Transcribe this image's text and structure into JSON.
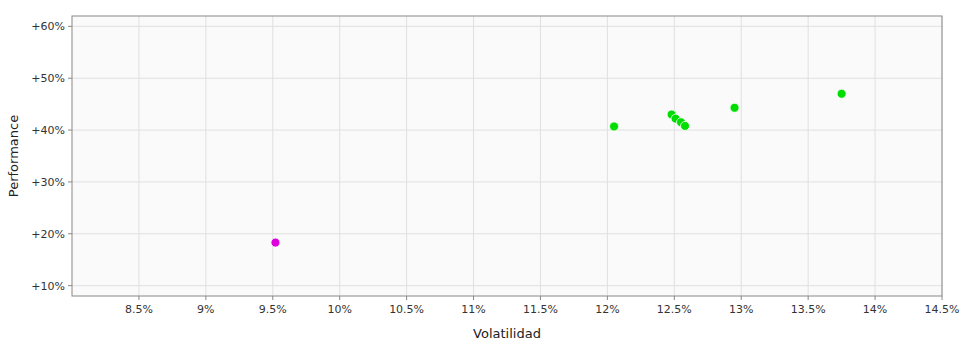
{
  "chart_data": {
    "type": "scatter",
    "x_label": "Volatilidad",
    "y_label": "Performance",
    "xlim": [
      0.08,
      0.145
    ],
    "ylim": [
      0.08,
      0.62
    ],
    "xticks": [
      {
        "value": 0.085,
        "label": "8.5%"
      },
      {
        "value": 0.09,
        "label": "9%"
      },
      {
        "value": 0.095,
        "label": "9.5%"
      },
      {
        "value": 0.1,
        "label": "10%"
      },
      {
        "value": 0.105,
        "label": "10.5%"
      },
      {
        "value": 0.11,
        "label": "11%"
      },
      {
        "value": 0.115,
        "label": "11.5%"
      },
      {
        "value": 0.12,
        "label": "12%"
      },
      {
        "value": 0.125,
        "label": "12.5%"
      },
      {
        "value": 0.13,
        "label": "13%"
      },
      {
        "value": 0.135,
        "label": "13.5%"
      },
      {
        "value": 0.14,
        "label": "14%"
      },
      {
        "value": 0.145,
        "label": "14.5%"
      }
    ],
    "yticks": [
      {
        "value": 0.1,
        "label": "+10%"
      },
      {
        "value": 0.2,
        "label": "+20%"
      },
      {
        "value": 0.3,
        "label": "+30%"
      },
      {
        "value": 0.4,
        "label": "+40%"
      },
      {
        "value": 0.5,
        "label": "+50%"
      },
      {
        "value": 0.6,
        "label": "+60%"
      }
    ],
    "grid": true,
    "series": [
      {
        "color": "#00dd00",
        "x": [
          0.1205,
          0.1248,
          0.1251,
          0.1255,
          0.1258,
          0.1295,
          0.1375
        ],
        "values": [
          0.407,
          0.43,
          0.422,
          0.415,
          0.408,
          0.443,
          0.47
        ]
      },
      {
        "color": "#dd00dd",
        "x": [
          0.0952
        ],
        "values": [
          0.183
        ]
      }
    ]
  }
}
